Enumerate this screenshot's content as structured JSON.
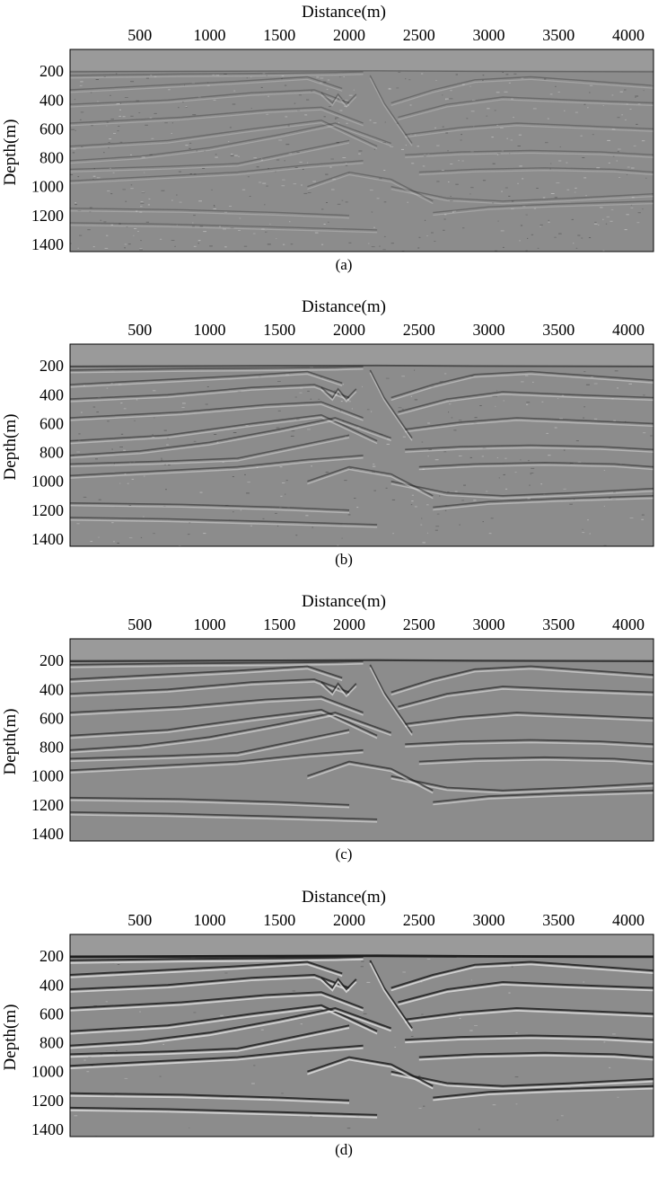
{
  "panels": [
    {
      "caption": "(a)",
      "xlabel": "Distance(m)",
      "ylabel": "Depth(m)",
      "x_ticks": [
        "500",
        "1000",
        "1500",
        "2000",
        "2500",
        "3000",
        "3500",
        "4000"
      ],
      "y_ticks": [
        "200",
        "400",
        "600",
        "800",
        "1000",
        "1200",
        "1400"
      ],
      "style": "noisy"
    },
    {
      "caption": "(b)",
      "xlabel": "Distance(m)",
      "ylabel": "Depth(m)",
      "x_ticks": [
        "500",
        "1000",
        "1500",
        "2000",
        "2500",
        "3000",
        "3500",
        "4000"
      ],
      "y_ticks": [
        "200",
        "400",
        "600",
        "800",
        "1000",
        "1200",
        "1400"
      ],
      "style": "medium"
    },
    {
      "caption": "(c)",
      "xlabel": "Distance(m)",
      "ylabel": "Depth(m)",
      "x_ticks": [
        "500",
        "1000",
        "1500",
        "2000",
        "2500",
        "3000",
        "3500",
        "4000"
      ],
      "y_ticks": [
        "200",
        "400",
        "600",
        "800",
        "1000",
        "1200",
        "1400"
      ],
      "style": "smooth"
    },
    {
      "caption": "(d)",
      "xlabel": "Distance(m)",
      "ylabel": "Depth(m)",
      "x_ticks": [
        "500",
        "1000",
        "1500",
        "2000",
        "2500",
        "3000",
        "3500",
        "4000"
      ],
      "y_ticks": [
        "200",
        "400",
        "600",
        "800",
        "1000",
        "1200",
        "1400"
      ],
      "style": "sharp"
    }
  ],
  "colors": {
    "background_gray": "#9a9a9a",
    "image_gray": "#8c8c8c",
    "reflector_dark": "#1e1e1e",
    "reflector_light": "#e2e2e2"
  }
}
